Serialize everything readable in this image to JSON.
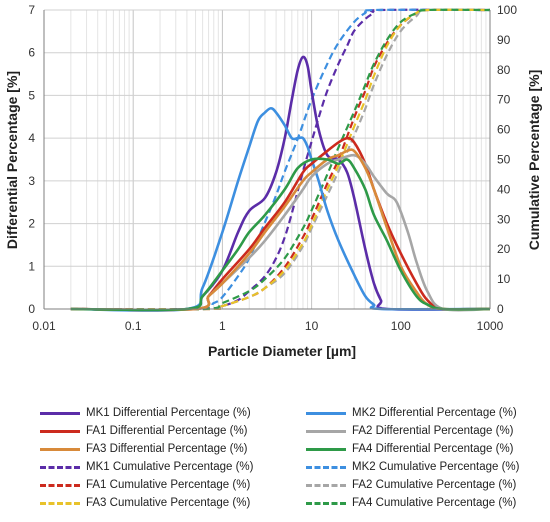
{
  "chart_data": {
    "type": "line",
    "x_scale": "log",
    "xlim": [
      0.01,
      1000
    ],
    "ylim_left": [
      0,
      7
    ],
    "ylim_right": [
      0,
      100
    ],
    "x_ticks": [
      "0.01",
      "0.1",
      "1",
      "10",
      "100",
      "1000"
    ],
    "y_left_ticks": [
      "0",
      "1",
      "2",
      "3",
      "4",
      "5",
      "6",
      "7"
    ],
    "y_right_ticks": [
      "0",
      "10",
      "20",
      "30",
      "40",
      "50",
      "60",
      "70",
      "80",
      "90",
      "100"
    ],
    "xlabel": "Particle Diameter [µm]",
    "ylabel_left": "Differential Percentage [%]",
    "ylabel_right": "Cumulative Percentage [%]",
    "grid": true,
    "legend_position": "bottom",
    "series": [
      {
        "name": "MK1 Differential Percentage (%)",
        "axis": "left",
        "color": "#5b2da8",
        "dash": false,
        "points": [
          [
            0.02,
            0
          ],
          [
            0.4,
            0
          ],
          [
            0.6,
            0.3
          ],
          [
            1,
            0.9
          ],
          [
            1.5,
            1.8
          ],
          [
            2,
            2.3
          ],
          [
            3,
            2.6
          ],
          [
            4,
            3.2
          ],
          [
            5,
            4.0
          ],
          [
            6,
            4.9
          ],
          [
            7,
            5.6
          ],
          [
            8,
            5.9
          ],
          [
            9,
            5.7
          ],
          [
            10,
            5.1
          ],
          [
            12,
            4.2
          ],
          [
            15,
            3.6
          ],
          [
            20,
            3.5
          ],
          [
            25,
            3.2
          ],
          [
            30,
            2.6
          ],
          [
            40,
            1.4
          ],
          [
            50,
            0.6
          ],
          [
            60,
            0.2
          ],
          [
            70,
            0
          ],
          [
            1000,
            0
          ]
        ]
      },
      {
        "name": "MK2 Differential Percentage (%)",
        "axis": "left",
        "color": "#3d8fe0",
        "dash": false,
        "points": [
          [
            0.02,
            0
          ],
          [
            0.4,
            0
          ],
          [
            0.6,
            0.5
          ],
          [
            1,
            1.8
          ],
          [
            1.5,
            3.0
          ],
          [
            2,
            3.8
          ],
          [
            2.5,
            4.4
          ],
          [
            3,
            4.6
          ],
          [
            3.5,
            4.7
          ],
          [
            4,
            4.6
          ],
          [
            5,
            4.3
          ],
          [
            6,
            4.0
          ],
          [
            7,
            4.0
          ],
          [
            8,
            4.0
          ],
          [
            9,
            3.8
          ],
          [
            10,
            3.5
          ],
          [
            12,
            3.0
          ],
          [
            15,
            2.3
          ],
          [
            20,
            1.6
          ],
          [
            30,
            0.8
          ],
          [
            40,
            0.3
          ],
          [
            50,
            0.1
          ],
          [
            60,
            0
          ],
          [
            1000,
            0
          ]
        ]
      },
      {
        "name": "FA1 Differential Percentage (%)",
        "axis": "left",
        "color": "#cc2a1e",
        "dash": false,
        "points": [
          [
            0.02,
            0
          ],
          [
            0.5,
            0
          ],
          [
            0.7,
            0.3
          ],
          [
            1,
            0.7
          ],
          [
            2,
            1.4
          ],
          [
            3,
            1.9
          ],
          [
            5,
            2.5
          ],
          [
            8,
            3.2
          ],
          [
            10,
            3.4
          ],
          [
            15,
            3.7
          ],
          [
            20,
            3.9
          ],
          [
            25,
            4.0
          ],
          [
            30,
            3.9
          ],
          [
            40,
            3.4
          ],
          [
            50,
            2.8
          ],
          [
            70,
            2.0
          ],
          [
            100,
            1.3
          ],
          [
            150,
            0.6
          ],
          [
            200,
            0.2
          ],
          [
            300,
            0
          ],
          [
            1000,
            0
          ]
        ]
      },
      {
        "name": "FA2 Differential Percentage (%)",
        "axis": "left",
        "color": "#a6a6a6",
        "dash": false,
        "points": [
          [
            0.02,
            0
          ],
          [
            0.5,
            0
          ],
          [
            0.7,
            0.3
          ],
          [
            1,
            0.6
          ],
          [
            2,
            1.2
          ],
          [
            3,
            1.6
          ],
          [
            5,
            2.2
          ],
          [
            8,
            2.8
          ],
          [
            10,
            3.1
          ],
          [
            15,
            3.4
          ],
          [
            20,
            3.5
          ],
          [
            30,
            3.6
          ],
          [
            40,
            3.4
          ],
          [
            50,
            3.1
          ],
          [
            70,
            2.7
          ],
          [
            90,
            2.5
          ],
          [
            120,
            1.8
          ],
          [
            150,
            1.1
          ],
          [
            200,
            0.4
          ],
          [
            300,
            0
          ],
          [
            1000,
            0
          ]
        ]
      },
      {
        "name": "FA3 Differential Percentage (%)",
        "axis": "left",
        "color": "#d88a3a",
        "dash": false,
        "points": [
          [
            0.02,
            0
          ],
          [
            0.5,
            0
          ],
          [
            0.7,
            0.3
          ],
          [
            1,
            0.6
          ],
          [
            2,
            1.3
          ],
          [
            3,
            1.8
          ],
          [
            5,
            2.4
          ],
          [
            8,
            3.0
          ],
          [
            10,
            3.2
          ],
          [
            15,
            3.5
          ],
          [
            20,
            3.6
          ],
          [
            25,
            3.7
          ],
          [
            30,
            3.7
          ],
          [
            40,
            3.3
          ],
          [
            50,
            2.8
          ],
          [
            70,
            1.9
          ],
          [
            100,
            1.0
          ],
          [
            150,
            0.4
          ],
          [
            200,
            0.1
          ],
          [
            300,
            0
          ],
          [
            1000,
            0
          ]
        ]
      },
      {
        "name": "FA4 Differential Percentage (%)",
        "axis": "left",
        "color": "#2e9a48",
        "dash": false,
        "points": [
          [
            0.02,
            0
          ],
          [
            0.4,
            0
          ],
          [
            0.6,
            0.3
          ],
          [
            1,
            0.9
          ],
          [
            1.5,
            1.4
          ],
          [
            2,
            1.8
          ],
          [
            3,
            2.2
          ],
          [
            5,
            2.8
          ],
          [
            7,
            3.3
          ],
          [
            10,
            3.5
          ],
          [
            15,
            3.5
          ],
          [
            20,
            3.4
          ],
          [
            25,
            3.5
          ],
          [
            30,
            3.3
          ],
          [
            40,
            2.8
          ],
          [
            50,
            2.2
          ],
          [
            70,
            1.6
          ],
          [
            100,
            0.9
          ],
          [
            150,
            0.3
          ],
          [
            200,
            0.1
          ],
          [
            300,
            0
          ],
          [
            1000,
            0
          ]
        ]
      },
      {
        "name": "MK1 Cumulative Percentage (%)",
        "axis": "right",
        "color": "#5b2da8",
        "dash": true,
        "points": [
          [
            0.02,
            0
          ],
          [
            0.6,
            0
          ],
          [
            1,
            1
          ],
          [
            1.5,
            3
          ],
          [
            2,
            6
          ],
          [
            3,
            11
          ],
          [
            4,
            17
          ],
          [
            5,
            24
          ],
          [
            6,
            32
          ],
          [
            8,
            46
          ],
          [
            10,
            56
          ],
          [
            12,
            64
          ],
          [
            15,
            73
          ],
          [
            20,
            82
          ],
          [
            25,
            88
          ],
          [
            30,
            93
          ],
          [
            40,
            97
          ],
          [
            50,
            99
          ],
          [
            60,
            100
          ],
          [
            1000,
            100
          ]
        ]
      },
      {
        "name": "MK2 Cumulative Percentage (%)",
        "axis": "right",
        "color": "#3d8fe0",
        "dash": true,
        "points": [
          [
            0.02,
            0
          ],
          [
            0.5,
            0
          ],
          [
            0.8,
            2
          ],
          [
            1,
            4
          ],
          [
            1.5,
            11
          ],
          [
            2,
            17
          ],
          [
            3,
            29
          ],
          [
            4,
            38
          ],
          [
            5,
            46
          ],
          [
            7,
            57
          ],
          [
            10,
            70
          ],
          [
            15,
            82
          ],
          [
            20,
            89
          ],
          [
            30,
            96
          ],
          [
            40,
            99
          ],
          [
            50,
            100
          ],
          [
            1000,
            100
          ]
        ]
      },
      {
        "name": "FA1 Cumulative Percentage (%)",
        "axis": "right",
        "color": "#cc2a1e",
        "dash": true,
        "points": [
          [
            0.02,
            0
          ],
          [
            0.7,
            0
          ],
          [
            1,
            1
          ],
          [
            2,
            4
          ],
          [
            3,
            7
          ],
          [
            5,
            14
          ],
          [
            8,
            24
          ],
          [
            10,
            30
          ],
          [
            15,
            42
          ],
          [
            20,
            50
          ],
          [
            30,
            64
          ],
          [
            40,
            73
          ],
          [
            50,
            81
          ],
          [
            70,
            89
          ],
          [
            100,
            95
          ],
          [
            150,
            99
          ],
          [
            200,
            100
          ],
          [
            1000,
            100
          ]
        ]
      },
      {
        "name": "FA2 Cumulative Percentage (%)",
        "axis": "right",
        "color": "#a6a6a6",
        "dash": true,
        "points": [
          [
            0.02,
            0
          ],
          [
            0.7,
            0
          ],
          [
            1,
            1
          ],
          [
            2,
            4
          ],
          [
            3,
            7
          ],
          [
            5,
            12
          ],
          [
            8,
            21
          ],
          [
            10,
            27
          ],
          [
            15,
            38
          ],
          [
            20,
            46
          ],
          [
            30,
            58
          ],
          [
            40,
            67
          ],
          [
            50,
            75
          ],
          [
            70,
            85
          ],
          [
            100,
            93
          ],
          [
            150,
            98
          ],
          [
            200,
            100
          ],
          [
            1000,
            100
          ]
        ]
      },
      {
        "name": "FA3 Cumulative Percentage (%)",
        "axis": "right",
        "color": "#e8c22a",
        "dash": true,
        "points": [
          [
            0.02,
            0
          ],
          [
            0.7,
            0
          ],
          [
            1,
            1
          ],
          [
            2,
            4
          ],
          [
            3,
            7
          ],
          [
            5,
            13
          ],
          [
            8,
            22
          ],
          [
            10,
            28
          ],
          [
            15,
            40
          ],
          [
            20,
            48
          ],
          [
            30,
            61
          ],
          [
            40,
            70
          ],
          [
            50,
            78
          ],
          [
            70,
            88
          ],
          [
            100,
            95
          ],
          [
            150,
            99
          ],
          [
            200,
            100
          ],
          [
            1000,
            100
          ]
        ]
      },
      {
        "name": "FA4 Cumulative Percentage (%)",
        "axis": "right",
        "color": "#2e9a48",
        "dash": true,
        "points": [
          [
            0.02,
            0
          ],
          [
            0.6,
            0
          ],
          [
            1,
            2
          ],
          [
            2,
            6
          ],
          [
            3,
            10
          ],
          [
            5,
            17
          ],
          [
            8,
            27
          ],
          [
            10,
            33
          ],
          [
            15,
            45
          ],
          [
            20,
            54
          ],
          [
            30,
            66
          ],
          [
            40,
            75
          ],
          [
            50,
            82
          ],
          [
            70,
            90
          ],
          [
            100,
            96
          ],
          [
            150,
            99
          ],
          [
            200,
            100
          ],
          [
            1000,
            100
          ]
        ]
      }
    ]
  }
}
